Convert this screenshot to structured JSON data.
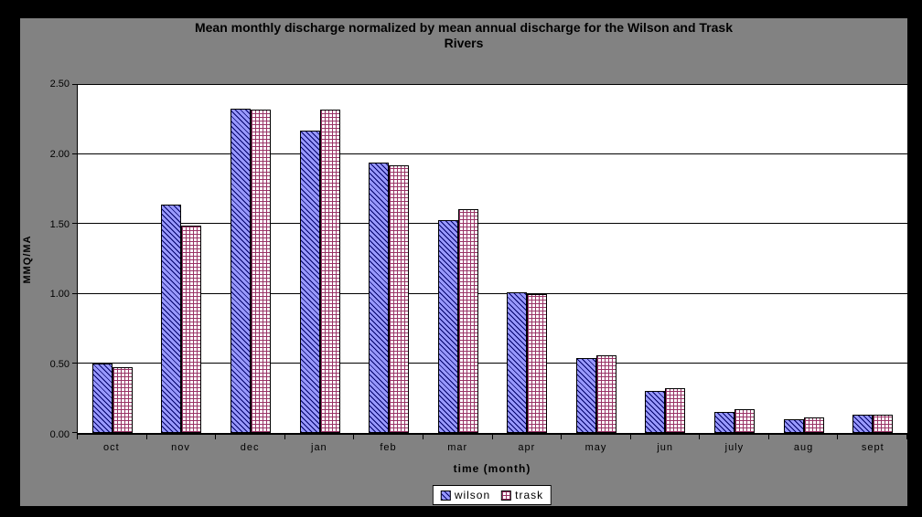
{
  "window": {
    "background": "#000000",
    "chart_background": "#828282",
    "plot_background": "#ffffff"
  },
  "chart_data": {
    "type": "bar",
    "title_line1": "Mean monthly discharge normalized by mean annual discharge for the Wilson and Trask",
    "title_line2": "Rivers",
    "xlabel": "time (month)",
    "ylabel": "MMQ/MA",
    "categories": [
      "oct",
      "nov",
      "dec",
      "jan",
      "feb",
      "mar",
      "apr",
      "may",
      "jun",
      "july",
      "aug",
      "sept"
    ],
    "series": [
      {
        "name": "wilson",
        "values": [
          0.5,
          1.64,
          2.33,
          2.17,
          1.94,
          1.53,
          1.01,
          0.54,
          0.3,
          0.15,
          0.1,
          0.13
        ],
        "fill": "#9999ff",
        "hatch": "#000066",
        "pattern": "diagonal"
      },
      {
        "name": "trask",
        "values": [
          0.47,
          1.49,
          2.32,
          2.32,
          1.92,
          1.61,
          1.0,
          0.56,
          0.32,
          0.17,
          0.11,
          0.13
        ],
        "fill": "#ffffff",
        "hatch": "#993366",
        "pattern": "grid"
      }
    ],
    "ylim": [
      0,
      2.5
    ],
    "yticks": [
      "2.50",
      "2.00",
      "1.50",
      "1.00",
      "0.50",
      "0.00"
    ],
    "grid": true,
    "gridline_color": "#000000",
    "legend_position": "bottom"
  }
}
